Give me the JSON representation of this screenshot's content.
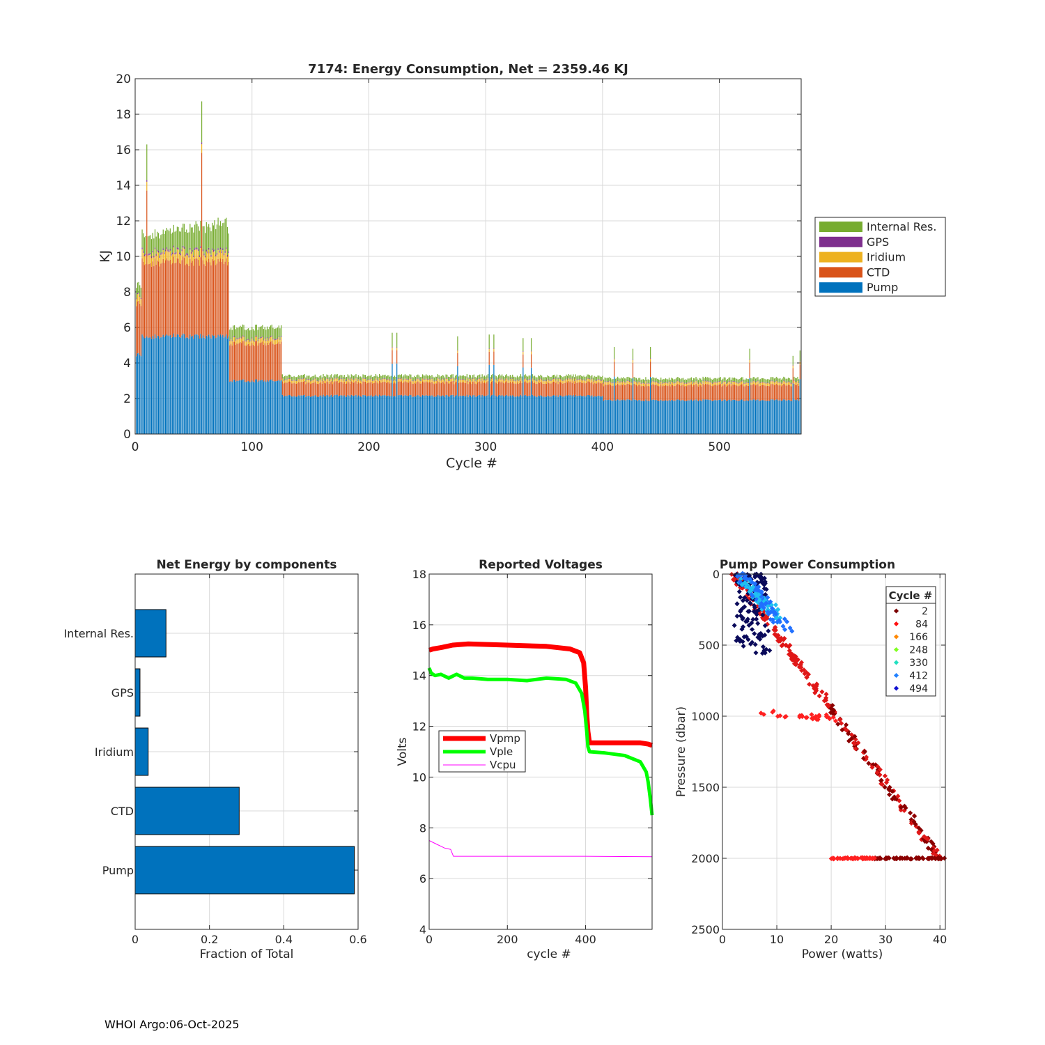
{
  "footer": "WHOI Argo:06-Oct-2025",
  "chart_data": [
    {
      "type": "bar",
      "stacked": true,
      "title": "7174: Energy Consumption,  Net = 2359.46 KJ",
      "xlabel": "Cycle #",
      "ylabel": "KJ",
      "xlim": [
        0,
        570
      ],
      "ylim": [
        0,
        20
      ],
      "xticks": [
        0,
        100,
        200,
        300,
        400,
        500
      ],
      "yticks": [
        0,
        2,
        4,
        6,
        8,
        10,
        12,
        14,
        16,
        18,
        20
      ],
      "grid": true,
      "legend_position": "right",
      "colors": {
        "Pump": "#0072BD",
        "CTD": "#D95319",
        "Iridium": "#EDB120",
        "GPS": "#7E2F8E",
        "Internal Res.": "#77AC30"
      },
      "legend": [
        "Internal Res.",
        "GPS",
        "Iridium",
        "CTD",
        "Pump"
      ],
      "segments_by_cycle_range": [
        {
          "cycles": [
            1,
            5
          ],
          "Pump": 4.5,
          "CTD": 2.9,
          "Iridium": 0.4,
          "GPS": 0.05,
          "Internal Res.": 0.6
        },
        {
          "cycles": [
            6,
            80
          ],
          "Pump": 5.5,
          "CTD": 4.2,
          "Iridium": 0.5,
          "GPS": 0.1,
          "Internal Res.": 1.0
        },
        {
          "cycles": [
            81,
            125
          ],
          "Pump": 3.0,
          "CTD": 2.1,
          "Iridium": 0.25,
          "GPS": 0.05,
          "Internal Res.": 0.6
        },
        {
          "cycles": [
            126,
            400
          ],
          "Pump": 2.15,
          "CTD": 0.75,
          "Iridium": 0.15,
          "GPS": 0.03,
          "Internal Res.": 0.2
        },
        {
          "cycles": [
            401,
            570
          ],
          "Pump": 1.9,
          "CTD": 0.85,
          "Iridium": 0.15,
          "GPS": 0.03,
          "Internal Res.": 0.2
        }
      ],
      "spikes": [
        {
          "cycle": 10,
          "total": 16.3
        },
        {
          "cycle": 57,
          "total": 18.4
        },
        {
          "cycle": 220,
          "total": 5.7
        },
        {
          "cycle": 224,
          "total": 5.7
        },
        {
          "cycle": 276,
          "total": 5.5
        },
        {
          "cycle": 303,
          "total": 5.6
        },
        {
          "cycle": 307,
          "total": 5.6
        },
        {
          "cycle": 332,
          "total": 5.4
        },
        {
          "cycle": 339,
          "total": 5.4
        },
        {
          "cycle": 410,
          "total": 4.9
        },
        {
          "cycle": 426,
          "total": 4.8
        },
        {
          "cycle": 441,
          "total": 4.9
        },
        {
          "cycle": 526,
          "total": 4.8
        },
        {
          "cycle": 563,
          "total": 4.4
        },
        {
          "cycle": 569,
          "total": 4.7
        }
      ]
    },
    {
      "type": "bar",
      "orientation": "horizontal",
      "title": "Net Energy by components",
      "xlabel": "Fraction of Total",
      "ylabel": "",
      "xlim": [
        0,
        0.6
      ],
      "xticks": [
        0,
        0.2,
        0.4,
        0.6
      ],
      "xtick_labels": [
        "0",
        "0.2",
        "0.4",
        "0.6"
      ],
      "categories": [
        "Internal Res.",
        "GPS",
        "Iridium",
        "CTD",
        "Pump"
      ],
      "values": [
        0.083,
        0.013,
        0.035,
        0.28,
        0.59
      ],
      "color": "#0072BD",
      "grid": true
    },
    {
      "type": "line",
      "title": "Reported Voltages",
      "xlabel": "cycle #",
      "ylabel": "Volts",
      "xlim": [
        0,
        570
      ],
      "ylim": [
        4,
        18
      ],
      "xticks": [
        0,
        200,
        400
      ],
      "yticks": [
        4,
        6,
        8,
        10,
        12,
        14,
        16,
        18
      ],
      "grid": true,
      "legend_position": "left",
      "series": [
        {
          "name": "Vpmp",
          "color": "#FF0000",
          "x": [
            0,
            10,
            30,
            60,
            100,
            200,
            300,
            360,
            385,
            395,
            400,
            403,
            406,
            410,
            450,
            500,
            540,
            560,
            570
          ],
          "y": [
            15.0,
            15.05,
            15.1,
            15.2,
            15.25,
            15.2,
            15.15,
            15.05,
            14.9,
            14.5,
            13.5,
            12.5,
            11.8,
            11.35,
            11.35,
            11.35,
            11.35,
            11.3,
            11.25
          ]
        },
        {
          "name": "Vple",
          "color": "#00FF00",
          "x": [
            0,
            5,
            15,
            30,
            50,
            70,
            90,
            110,
            150,
            200,
            250,
            300,
            350,
            375,
            390,
            398,
            403,
            406,
            410,
            450,
            500,
            540,
            555,
            560,
            565,
            570
          ],
          "y": [
            14.3,
            14.1,
            14.0,
            14.05,
            13.9,
            14.05,
            13.9,
            13.9,
            13.85,
            13.85,
            13.8,
            13.9,
            13.85,
            13.7,
            13.3,
            12.6,
            11.8,
            11.2,
            11.0,
            10.95,
            10.85,
            10.6,
            10.2,
            9.8,
            9.2,
            8.5
          ]
        },
        {
          "name": "Vcpu",
          "color": "#FF00FF",
          "x": [
            0,
            20,
            40,
            55,
            62,
            70,
            100,
            200,
            300,
            400,
            500,
            570
          ],
          "y": [
            7.5,
            7.35,
            7.2,
            7.15,
            6.88,
            6.88,
            6.88,
            6.88,
            6.88,
            6.88,
            6.87,
            6.86
          ]
        }
      ]
    },
    {
      "type": "scatter",
      "title": "Pump Power Consumption",
      "xlabel": "Power (watts)",
      "ylabel": "Pressure (dbar)",
      "xlim": [
        0,
        41
      ],
      "ylim": [
        2500,
        0
      ],
      "xticks": [
        0,
        10,
        20,
        30,
        40
      ],
      "yticks": [
        0,
        500,
        1000,
        1500,
        2000,
        2500
      ],
      "grid": true,
      "legend_title": "Cycle #",
      "legend_position": "top-right",
      "series": [
        {
          "name": "2",
          "color": "#7A0000"
        },
        {
          "name": "84",
          "color": "#FF1010"
        },
        {
          "name": "166",
          "color": "#FF8800"
        },
        {
          "name": "248",
          "color": "#80FF20"
        },
        {
          "name": "330",
          "color": "#20E0C0"
        },
        {
          "name": "412",
          "color": "#2080FF"
        },
        {
          "name": "494",
          "color": "#1010D0"
        }
      ],
      "point_groups": [
        {
          "label": "diagonal",
          "color": "#D01010",
          "from": [
            2,
            0
          ],
          "to": [
            40,
            2000
          ]
        },
        {
          "label": "bottom-hold-deep",
          "color": "#8B0000",
          "from": [
            28,
            2000
          ],
          "to": [
            41,
            2000
          ]
        },
        {
          "label": "bottom-hold-mid",
          "color": "#FF2020",
          "from": [
            20,
            2000
          ],
          "to": [
            28,
            2000
          ]
        },
        {
          "label": "park-1000",
          "color": "#FF2020",
          "from": [
            7,
            975
          ],
          "to": [
            23,
            1020
          ]
        },
        {
          "label": "shallow-late",
          "color": "#0A0A5A",
          "from": [
            2,
            0
          ],
          "to": [
            9,
            550
          ]
        },
        {
          "label": "shallow-blue",
          "color": "#2080FF",
          "from": [
            3,
            0
          ],
          "to": [
            12,
            380
          ]
        }
      ]
    }
  ]
}
